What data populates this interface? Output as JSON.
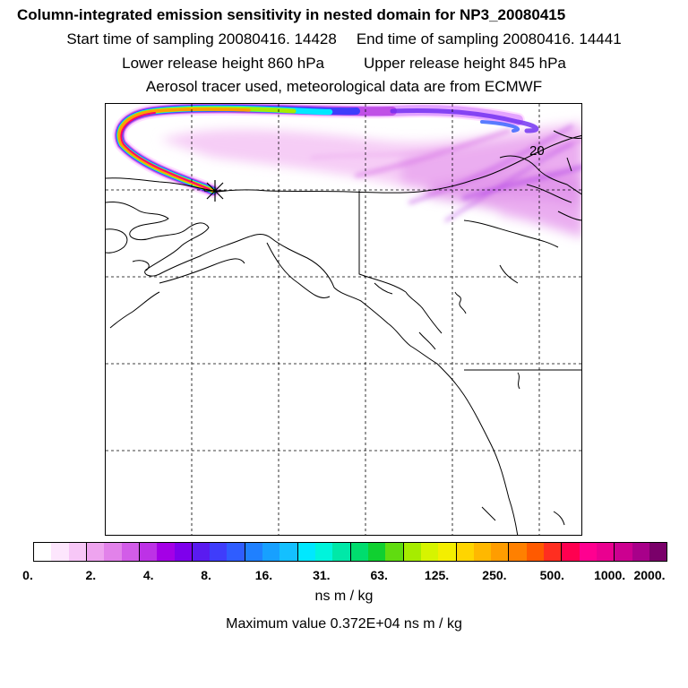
{
  "header": {
    "title": "Column-integrated emission sensitivity in nested domain for NP3_20080415",
    "start_time": "Start time of sampling 20080416. 14428",
    "end_time": "End time of sampling 20080416. 14441",
    "lower_height": "Lower release height  860 hPa",
    "upper_height": "Upper release height  845 hPa",
    "tracer_info": "Aerosol tracer used, meteorological data are from ECMWF"
  },
  "map": {
    "label_20": "20",
    "release_marker": "release-point-star"
  },
  "colorbar": {
    "colors": [
      "#ffffff",
      "#fde6fd",
      "#f7c7f7",
      "#eea4ef",
      "#e282ea",
      "#d25ce8",
      "#bd32e6",
      "#a400e6",
      "#7e00ec",
      "#5a1bf0",
      "#3f3dfb",
      "#2f5dff",
      "#1f80ff",
      "#17a0ff",
      "#14c0ff",
      "#00e8ff",
      "#00f4dc",
      "#00e8a8",
      "#00dd6e",
      "#10d030",
      "#60dc10",
      "#a6ec00",
      "#d6f400",
      "#f4ee00",
      "#ffd500",
      "#ffb800",
      "#ff9d00",
      "#ff8000",
      "#ff5a00",
      "#ff2e20",
      "#ff0050",
      "#ff0090",
      "#ea0090",
      "#cc0090",
      "#a8008a",
      "#7a006a"
    ],
    "ticks": [
      "0.",
      "2.",
      "4.",
      "8.",
      "16.",
      "31.",
      "63.",
      "125.",
      "250.",
      "500.",
      "1000.",
      "2000."
    ]
  },
  "units": "ns m / kg",
  "max_value": "Maximum value  0.372E+04 ns m / kg"
}
